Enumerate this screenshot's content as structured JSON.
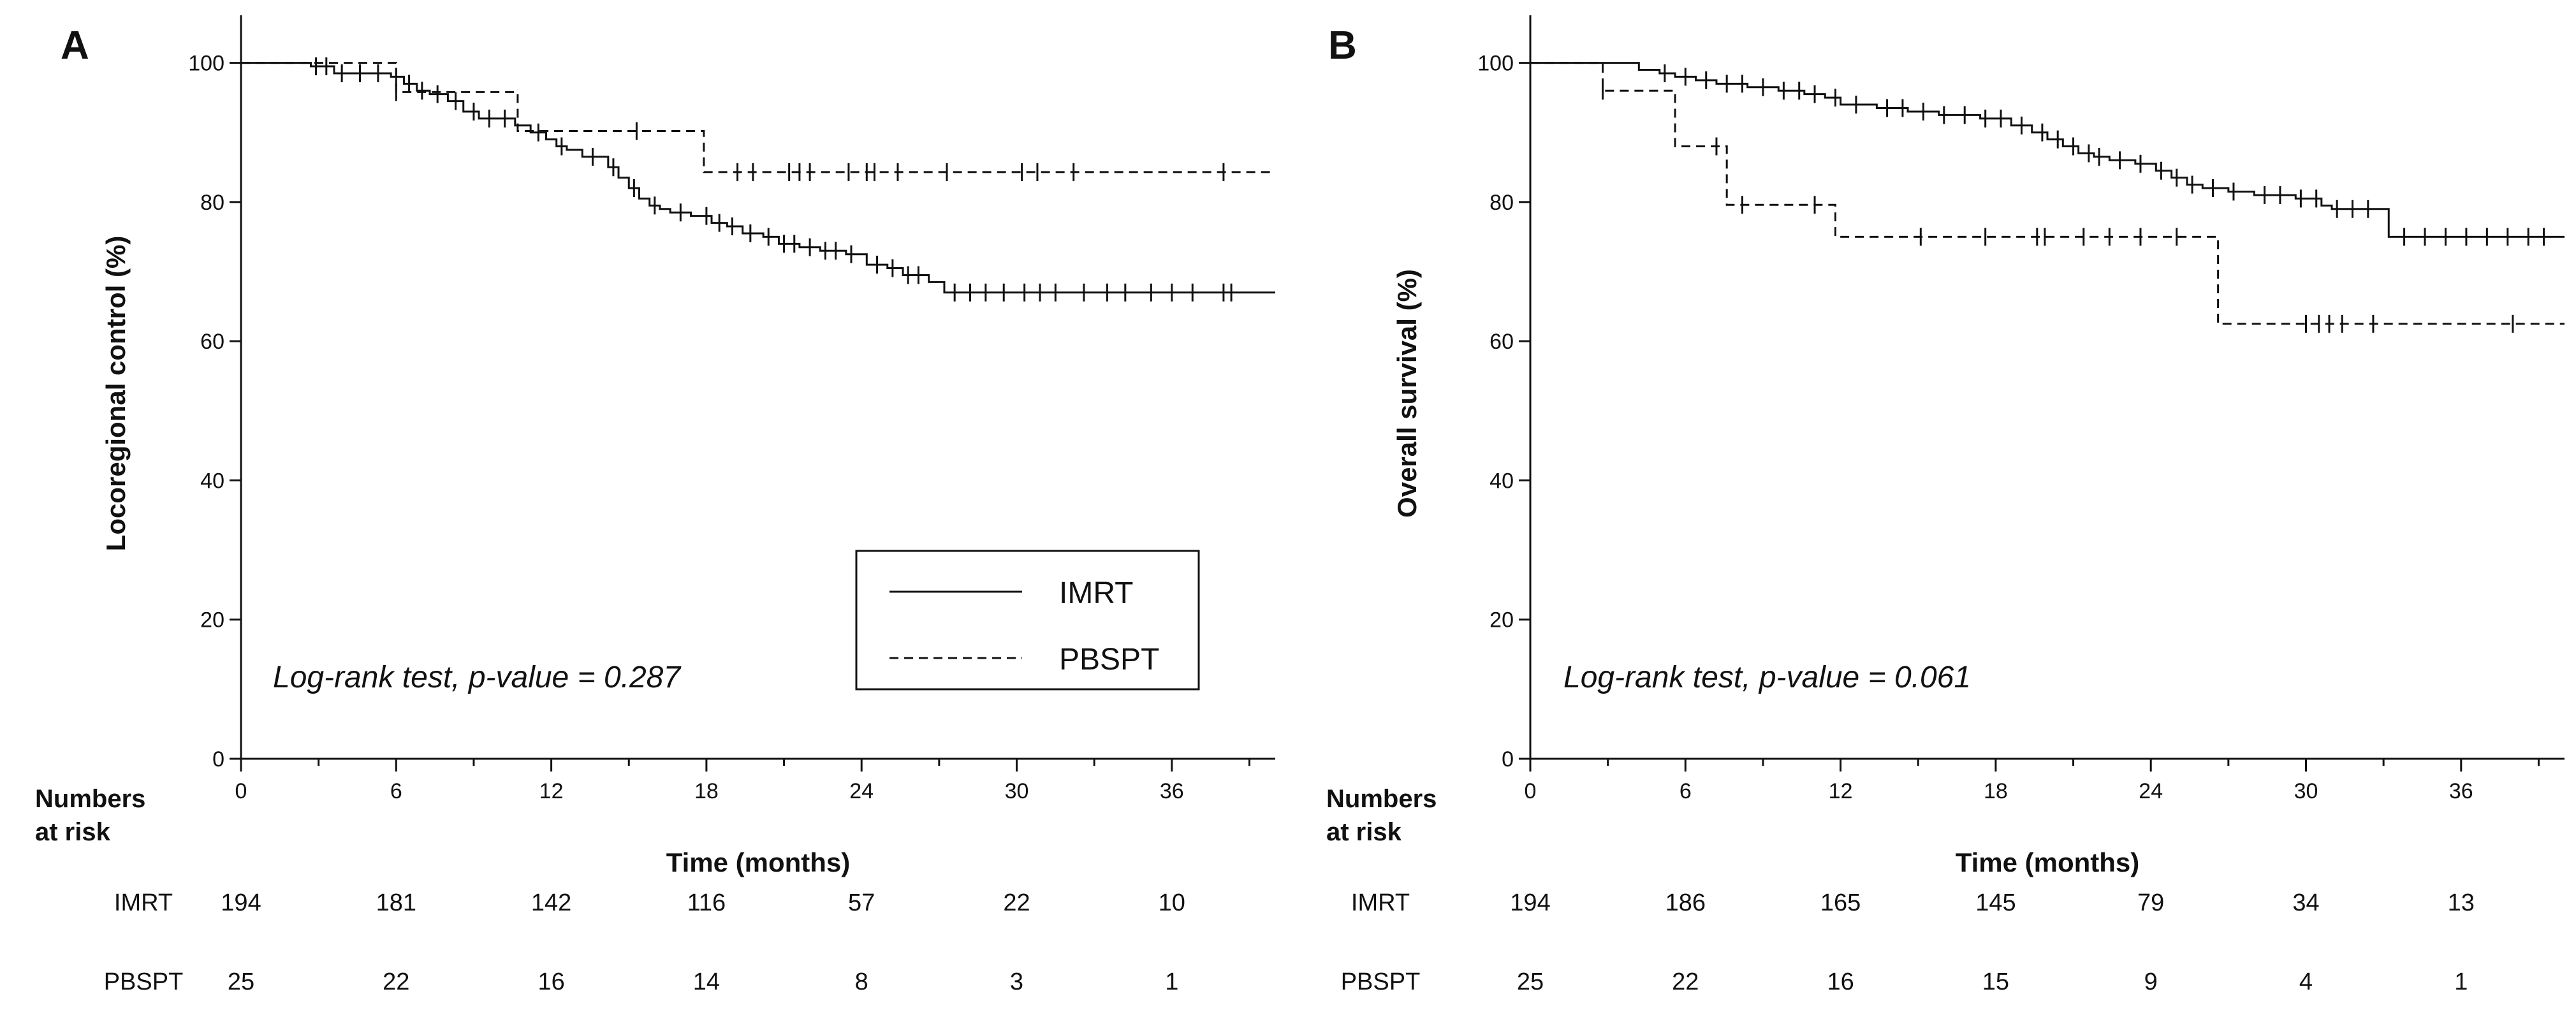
{
  "chart_data": [
    {
      "type": "line",
      "panel_label": "A",
      "title": "",
      "xlabel": "Time (months)",
      "ylabel": "Locoregional control (%)",
      "xticks": [
        "0",
        "6",
        "12",
        "18",
        "24",
        "30",
        "36"
      ],
      "yticks": [
        "0",
        "20",
        "40",
        "60",
        "80",
        "100"
      ],
      "xlim": [
        0,
        40
      ],
      "ylim": [
        0,
        105
      ],
      "grid": false,
      "annotation": "Log-rank test, p-value = 0.287",
      "legend": {
        "position": "lower-right",
        "entries": [
          {
            "name": "IMRT",
            "style": "solid"
          },
          {
            "name": "PBSPT",
            "style": "dashed"
          }
        ]
      },
      "series": [
        {
          "name": "IMRT",
          "style": "solid",
          "x": [
            0,
            2.7,
            3.6,
            5.8,
            6.3,
            6.8,
            7.3,
            8.0,
            8.6,
            9.2,
            10.6,
            11.2,
            11.8,
            12.2,
            12.6,
            13.2,
            14.2,
            14.6,
            15.0,
            15.4,
            15.8,
            16.2,
            16.6,
            17.4,
            18.2,
            18.8,
            19.4,
            20.2,
            20.8,
            21.6,
            22.4,
            23.4,
            24.2,
            25.0,
            25.6,
            26.6,
            27.2,
            40
          ],
          "y": [
            100,
            99.5,
            98.5,
            98.0,
            97.0,
            96.0,
            95.5,
            94.5,
            93.0,
            92.0,
            91.0,
            90.0,
            89.0,
            88.0,
            87.5,
            86.5,
            85.0,
            83.5,
            82.0,
            80.5,
            79.5,
            79.0,
            78.5,
            78.0,
            77.0,
            76.5,
            75.5,
            75.0,
            74.0,
            73.5,
            73.0,
            72.5,
            71.0,
            70.5,
            69.5,
            68.5,
            67.0,
            67.0
          ],
          "censor_x": [
            2.9,
            3.3,
            3.9,
            4.6,
            5.3,
            6.0,
            6.5,
            7.0,
            7.6,
            8.3,
            9.0,
            9.6,
            10.2,
            11.5,
            12.4,
            13.6,
            14.4,
            15.2,
            16.0,
            17.0,
            18.0,
            18.5,
            19.0,
            19.7,
            20.4,
            21.0,
            21.4,
            22.0,
            22.6,
            23.0,
            23.6,
            24.6,
            25.2,
            25.8,
            26.2,
            27.6,
            28.2,
            28.8,
            29.5,
            30.3,
            30.9,
            31.5,
            32.6,
            33.5,
            34.2,
            35.2,
            36.0,
            36.8,
            38.0,
            38.3
          ]
        },
        {
          "name": "PBSPT",
          "style": "dashed",
          "x": [
            0,
            6.0,
            10.7,
            17.9,
            40
          ],
          "y": [
            100,
            95.8,
            90.2,
            84.3,
            84.3
          ],
          "censor_x": [
            6.0,
            15.3,
            19.2,
            19.8,
            21.2,
            21.6,
            22.0,
            23.5,
            24.2,
            24.5,
            25.4,
            27.3,
            30.2,
            30.8,
            32.2,
            38.0
          ]
        }
      ],
      "numbers_at_risk": {
        "title_line1": "Numbers",
        "title_line2": "at risk",
        "rows": [
          {
            "label": "IMRT",
            "values": [
              "194",
              "181",
              "142",
              "116",
              "57",
              "22",
              "10"
            ]
          },
          {
            "label": "PBSPT",
            "values": [
              "25",
              "22",
              "16",
              "14",
              "8",
              "3",
              "1"
            ]
          }
        ]
      }
    },
    {
      "type": "line",
      "panel_label": "B",
      "title": "",
      "xlabel": "Time (months)",
      "ylabel": "Overall survival (%)",
      "xticks": [
        "0",
        "6",
        "12",
        "18",
        "24",
        "30",
        "36"
      ],
      "yticks": [
        "0",
        "20",
        "40",
        "60",
        "80",
        "100"
      ],
      "xlim": [
        0,
        40
      ],
      "ylim": [
        0,
        105
      ],
      "grid": false,
      "annotation": "Log-rank test, p-value = 0.061",
      "legend": null,
      "series": [
        {
          "name": "IMRT",
          "style": "solid",
          "x": [
            0,
            4.2,
            5.0,
            5.6,
            6.4,
            7.2,
            8.4,
            9.6,
            10.6,
            11.4,
            12.0,
            13.4,
            14.6,
            15.8,
            17.4,
            18.6,
            19.4,
            20.0,
            20.6,
            21.2,
            21.8,
            22.4,
            23.4,
            24.2,
            24.8,
            25.4,
            26.0,
            27.0,
            28.0,
            29.6,
            30.6,
            31.0,
            33.2,
            40
          ],
          "y": [
            100,
            99.0,
            98.5,
            98.0,
            97.5,
            97.0,
            96.5,
            96.0,
            95.5,
            95.0,
            94.0,
            93.5,
            93.0,
            92.5,
            92.0,
            91.0,
            90.0,
            89.0,
            88.0,
            87.0,
            86.5,
            86.0,
            85.5,
            84.5,
            83.5,
            82.5,
            82.0,
            81.5,
            81.0,
            80.5,
            79.5,
            79.0,
            75.0,
            75.0
          ],
          "censor_x": [
            5.2,
            6.0,
            6.8,
            7.6,
            8.2,
            9.0,
            9.8,
            10.4,
            11.0,
            11.8,
            12.6,
            13.8,
            14.4,
            15.2,
            16.0,
            16.8,
            17.6,
            18.2,
            19.0,
            19.8,
            20.4,
            21.0,
            21.6,
            22.0,
            22.8,
            23.6,
            24.4,
            25.0,
            25.6,
            26.4,
            27.2,
            28.4,
            29.0,
            29.8,
            30.4,
            31.2,
            31.8,
            32.4,
            33.8,
            34.6,
            35.4,
            36.2,
            37.0,
            37.8,
            38.6,
            39.2
          ]
        },
        {
          "name": "PBSPT",
          "style": "dashed",
          "x": [
            0,
            2.8,
            5.6,
            7.6,
            11.8,
            26.6,
            40
          ],
          "y": [
            100,
            96.0,
            88.0,
            79.6,
            75.0,
            62.5,
            62.5
          ],
          "censor_x": [
            2.8,
            7.2,
            8.2,
            11.0,
            15.1,
            17.6,
            19.6,
            19.9,
            21.4,
            22.4,
            23.6,
            25.0,
            30.0,
            30.5,
            30.9,
            31.4,
            32.6,
            38.0
          ]
        }
      ],
      "numbers_at_risk": {
        "title_line1": "Numbers",
        "title_line2": "at risk",
        "rows": [
          {
            "label": "IMRT",
            "values": [
              "194",
              "186",
              "165",
              "145",
              "79",
              "34",
              "13"
            ]
          },
          {
            "label": "PBSPT",
            "values": [
              "25",
              "22",
              "16",
              "15",
              "9",
              "4",
              "1"
            ]
          }
        ]
      }
    }
  ],
  "colors": {
    "ink": "#111111",
    "background": "#ffffff"
  }
}
